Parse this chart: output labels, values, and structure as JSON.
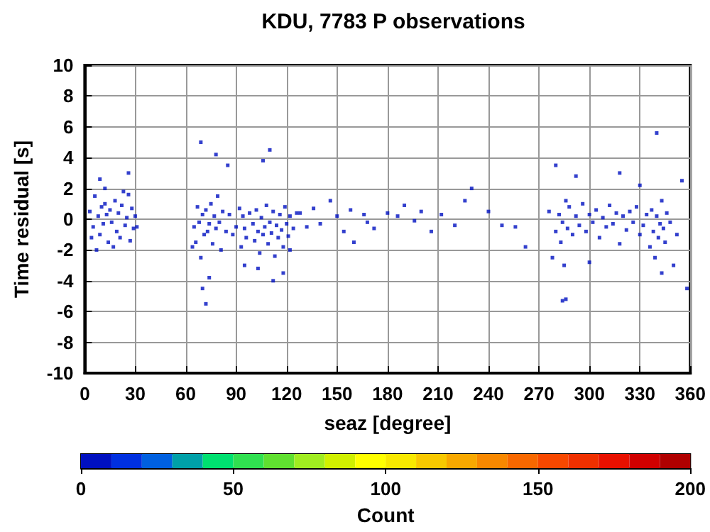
{
  "chart_data": {
    "type": "scatter",
    "title": "KDU, 7783 P observations",
    "xlabel": "seaz [degree]",
    "ylabel": "Time residual [s]",
    "clabel": "Count",
    "xlim": [
      0,
      360
    ],
    "xticks": [
      0,
      30,
      60,
      90,
      120,
      150,
      180,
      210,
      240,
      270,
      300,
      330,
      360
    ],
    "ylim": [
      -10,
      10
    ],
    "yticks": [
      -10,
      -8,
      -6,
      -4,
      -2,
      0,
      2,
      4,
      6,
      8,
      10
    ],
    "clim": [
      0,
      200
    ],
    "cticks": [
      0,
      50,
      100,
      150,
      200
    ],
    "grid": true,
    "marker": "square",
    "series": [
      {
        "x": [
          3,
          5,
          6,
          8,
          9,
          10,
          11,
          12,
          13,
          14,
          15,
          16,
          18,
          19,
          20,
          21,
          22,
          24,
          25,
          26,
          27,
          28,
          29,
          30,
          7,
          12,
          17,
          23,
          26,
          4,
          31,
          9,
          65,
          66,
          67,
          68,
          69,
          70,
          71,
          72,
          73,
          74,
          75,
          76,
          77,
          78,
          79,
          80,
          81,
          82,
          84,
          86,
          88,
          90,
          92,
          93,
          94,
          95,
          96,
          98,
          100,
          101,
          102,
          103,
          104,
          105,
          106,
          107,
          108,
          109,
          110,
          111,
          112,
          113,
          114,
          115,
          116,
          117,
          118,
          119,
          120,
          121,
          122,
          124,
          126,
          72,
          70,
          74,
          69,
          78,
          85,
          95,
          103,
          106,
          110,
          112,
          118,
          64,
          122,
          128,
          132,
          136,
          140,
          146,
          150,
          154,
          158,
          160,
          166,
          168,
          172,
          180,
          186,
          190,
          196,
          200,
          206,
          212,
          220,
          226,
          230,
          240,
          248,
          256,
          262,
          276,
          278,
          280,
          282,
          283,
          284,
          285,
          286,
          287,
          288,
          290,
          292,
          294,
          296,
          298,
          300,
          302,
          304,
          306,
          308,
          310,
          312,
          314,
          316,
          318,
          320,
          322,
          324,
          326,
          328,
          330,
          332,
          334,
          336,
          337,
          338,
          339,
          340,
          341,
          342,
          343,
          344,
          345,
          346,
          348,
          350,
          352,
          355,
          358,
          280,
          286,
          292,
          300,
          318,
          330,
          340,
          343,
          284
        ],
        "values": [
          0.5,
          -0.5,
          1.5,
          0.2,
          -1,
          0.8,
          -0.3,
          1,
          0.3,
          -1.5,
          0.6,
          -0.2,
          1.2,
          -0.8,
          0.4,
          -1.2,
          0.9,
          -0.4,
          0.1,
          1.6,
          -1.4,
          0.7,
          -0.6,
          0.2,
          -2,
          2,
          -1.8,
          1.8,
          3,
          -1.2,
          -0.5,
          2.6,
          -0.5,
          -1.5,
          0.8,
          -0.2,
          -2.5,
          0.3,
          -1,
          0.6,
          -0.8,
          -0.3,
          1,
          -1.6,
          0.2,
          -0.6,
          1.5,
          -0.2,
          -2,
          0.5,
          -0.8,
          0.3,
          -1,
          -0.5,
          0.7,
          -1.8,
          0.2,
          -0.6,
          -1.2,
          0.4,
          -0.3,
          -1.4,
          0.6,
          -0.8,
          -2.2,
          0.1,
          -1,
          -0.5,
          0.9,
          -1.6,
          -0.2,
          -0.9,
          0.5,
          -2.4,
          -0.4,
          -1.2,
          0.3,
          -0.7,
          -1.8,
          0.8,
          -0.3,
          -1.1,
          0.2,
          -0.6,
          0.4,
          -5.5,
          -4.5,
          -3.8,
          5,
          4.2,
          3.5,
          -3,
          -3.2,
          3.8,
          4.5,
          -4,
          -3.5,
          -1.8,
          -2,
          0.4,
          -0.5,
          0.7,
          -0.3,
          1.2,
          0.2,
          -0.8,
          0.6,
          -1.5,
          0.3,
          -0.2,
          -0.6,
          0.4,
          0.2,
          0.9,
          -0.1,
          0.5,
          -0.8,
          0.3,
          -0.4,
          1.2,
          2,
          0.5,
          -0.4,
          -0.5,
          -1.8,
          0.5,
          -2.5,
          -0.8,
          0.3,
          -1.5,
          -0.2,
          -3,
          1.2,
          -0.6,
          0.8,
          -1,
          0.2,
          -0.4,
          1,
          -0.8,
          0.3,
          -0.2,
          0.6,
          -1.2,
          0.1,
          -0.5,
          0.9,
          -0.3,
          0.4,
          -1.6,
          0.2,
          -0.7,
          0.5,
          -0.2,
          0.8,
          -1,
          -0.4,
          0.3,
          -1.8,
          0.6,
          -0.8,
          -2.5,
          0.2,
          -1.2,
          -0.3,
          1.2,
          -0.6,
          -1.5,
          0.4,
          -0.2,
          -3,
          -1,
          2.5,
          -4.5,
          3.5,
          -5.2,
          2.8,
          -2.8,
          3,
          2.2,
          5.6,
          -3.5,
          -5.3
        ],
        "cvalues": [
          5,
          5,
          5,
          5,
          5,
          5,
          5,
          5,
          5,
          5,
          5,
          5,
          5,
          5,
          5,
          5,
          5,
          5,
          5,
          5,
          5,
          5,
          5,
          5,
          5,
          5,
          5,
          5,
          5,
          5,
          5,
          5,
          5,
          5,
          5,
          5,
          5,
          5,
          5,
          5,
          5,
          5,
          5,
          5,
          5,
          5,
          5,
          5,
          5,
          5,
          5,
          5,
          5,
          5,
          5,
          5,
          5,
          5,
          5,
          5,
          5,
          5,
          5,
          5,
          5,
          5,
          5,
          5,
          5,
          5,
          5,
          5,
          5,
          5,
          5,
          5,
          5,
          5,
          5,
          5,
          5,
          5,
          5,
          5,
          5,
          5,
          5,
          5,
          5,
          5,
          5,
          5,
          5,
          5,
          5,
          5,
          5,
          5,
          5,
          5,
          5,
          5,
          5,
          5,
          5,
          5,
          5,
          5,
          5,
          5,
          5,
          5,
          5,
          5,
          5,
          5,
          5,
          5,
          5,
          5,
          5,
          5,
          5,
          5,
          5,
          5,
          5,
          5,
          5,
          5,
          5,
          5,
          5,
          5,
          5,
          5,
          5,
          5,
          5,
          5,
          5,
          5,
          5,
          5,
          5,
          5,
          5,
          5,
          5,
          5,
          5,
          5,
          5,
          5,
          5,
          5,
          5,
          5,
          5,
          5,
          5,
          5,
          5,
          5,
          5,
          5,
          5,
          5,
          5,
          5,
          5,
          5,
          5,
          5,
          5,
          5,
          5,
          5,
          5,
          5,
          5,
          5,
          5
        ]
      }
    ]
  }
}
